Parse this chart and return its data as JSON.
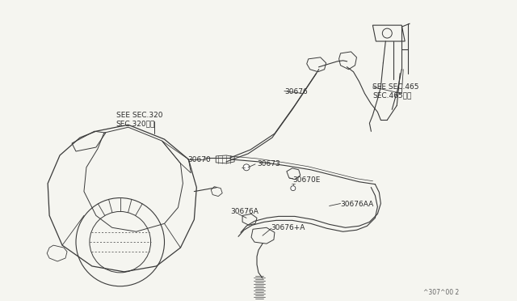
{
  "bg_color": "#f5f5f0",
  "line_color": "#3a3a3a",
  "text_color": "#2a2a2a",
  "diagram_id": "^307^00 2",
  "labels": {
    "sec320": "SEE SEC.320\nSEC.320参照",
    "sec465": "SEE SEC.465\nSEC.465参照",
    "30670": "30670",
    "30673": "30673",
    "30676": "30676",
    "30670E": "30670E",
    "30676A": "30676A",
    "30676plus": "30676+A",
    "30676AA": "30676AA"
  },
  "figsize": [
    6.4,
    3.72
  ],
  "dpi": 100
}
